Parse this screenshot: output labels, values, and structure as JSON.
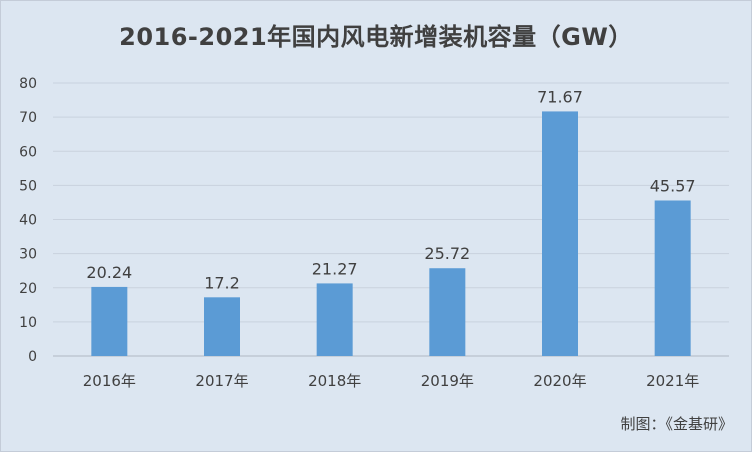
{
  "chart_data": {
    "type": "bar",
    "title": "2016-2021年国内风电新增装机容量（GW）",
    "categories": [
      "2016年",
      "2017年",
      "2018年",
      "2019年",
      "2020年",
      "2021年"
    ],
    "values": [
      20.24,
      17.2,
      21.27,
      25.72,
      71.67,
      45.57
    ],
    "value_labels": [
      "20.24",
      "17.2",
      "21.27",
      "25.72",
      "71.67",
      "45.57"
    ],
    "ylim": [
      0,
      80
    ],
    "yticks": [
      0,
      10,
      20,
      30,
      40,
      50,
      60,
      70,
      80
    ],
    "grid": true,
    "bar_color": "#5b9bd5"
  },
  "source_note": "制图：《金基研》"
}
